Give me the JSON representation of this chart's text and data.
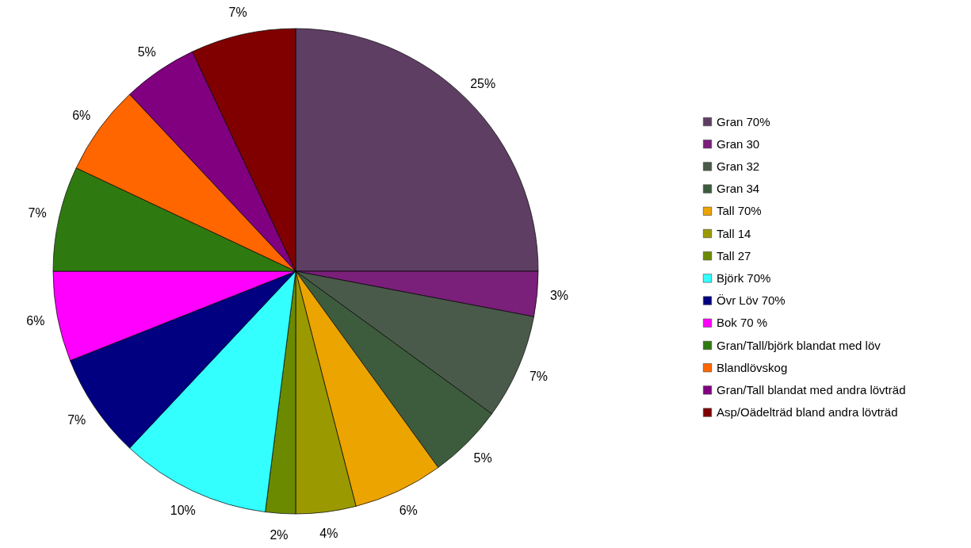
{
  "chart_data": {
    "type": "pie",
    "categories": [
      "Gran 70%",
      "Gran 30",
      "Gran 32",
      "Gran 34",
      "Tall 70%",
      "Tall 14",
      "Tall 27",
      "Björk 70%",
      "Övr Löv 70%",
      "Bok 70 %",
      "Gran/Tall/björk blandat med löv",
      "Blandlövskog",
      "Gran/Tall blandat med andra lövträd",
      "Asp/Oädelträd bland andra lövträd"
    ],
    "values": [
      25,
      3,
      7,
      5,
      6,
      4,
      2,
      10,
      7,
      6,
      7,
      6,
      5,
      7
    ],
    "colors": [
      "#5e3f63",
      "#7a1f7a",
      "#4a5a4a",
      "#3d5c3d",
      "#eba400",
      "#9a9a00",
      "#6b8a00",
      "#33ffff",
      "#000080",
      "#ff00ff",
      "#2f7a10",
      "#ff6600",
      "#800080",
      "#800000"
    ],
    "value_labels": [
      "25%",
      "3%",
      "7%",
      "5%",
      "6%",
      "4%",
      "2%",
      "10%",
      "7%",
      "6%",
      "7%",
      "6%",
      "5%",
      "7%"
    ],
    "legend": "right"
  }
}
